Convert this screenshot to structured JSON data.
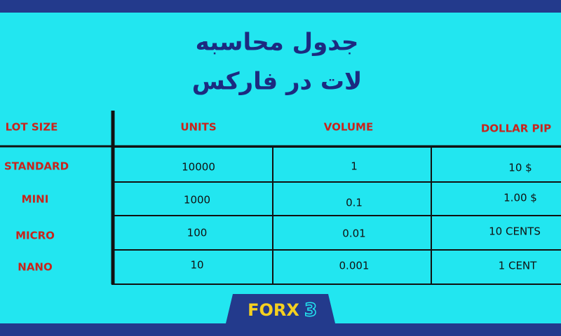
{
  "title": {
    "line1": "جدول محاسبه",
    "line2": "لات در فارکس"
  },
  "table": {
    "headers": [
      "LOT SIZE",
      "UNITS",
      "VOLUME",
      "DOLLAR PIP"
    ],
    "rows": [
      [
        "STANDARD",
        "10000",
        "1",
        "10 $"
      ],
      [
        "MINI",
        "1000",
        "0.1",
        "1.00 $"
      ],
      [
        "MICRO",
        "100",
        "0.01",
        "10 CENTS"
      ],
      [
        "NANO",
        "10",
        "0.001",
        "1 CENT"
      ]
    ]
  },
  "logo": {
    "text": "FORX",
    "number": "3"
  }
}
